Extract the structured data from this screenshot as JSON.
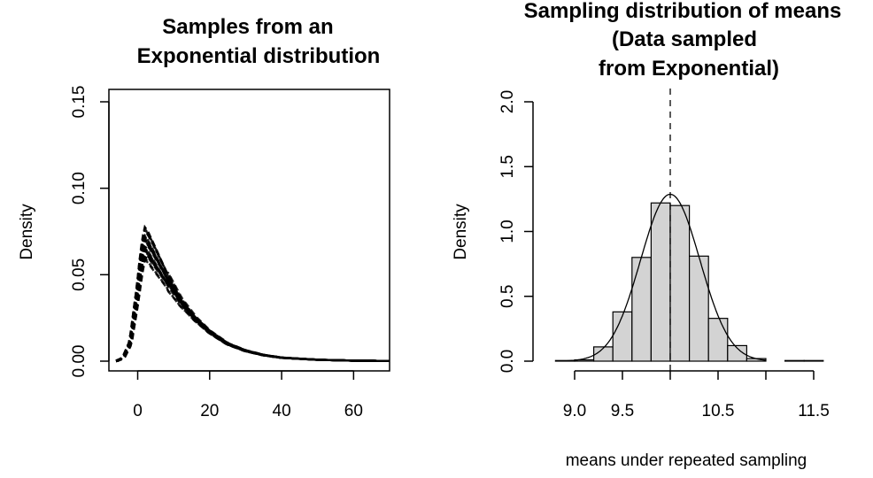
{
  "chart_data": [
    {
      "type": "line",
      "title": [
        "Samples from an",
        "Exponential distribution"
      ],
      "xlabel": "",
      "ylabel": "Density",
      "xlim": [
        -8,
        70
      ],
      "ylim": [
        0,
        0.15
      ],
      "xticks": [
        "0",
        "20",
        "40",
        "60"
      ],
      "yticks": [
        "0.00",
        "0.05",
        "0.10",
        "0.15"
      ],
      "grid": false,
      "note_series": "many overlaid dashed kernel density curves of exponential samples (mean ~10)",
      "series": [
        {
          "peak": 0.08,
          "x": [
            -6,
            -4,
            -2,
            0,
            1,
            2,
            3,
            5,
            8,
            12,
            16,
            20,
            25,
            30,
            35,
            40,
            50,
            60,
            70
          ],
          "y": [
            0.0,
            0.002,
            0.012,
            0.045,
            0.065,
            0.078,
            0.075,
            0.066,
            0.052,
            0.036,
            0.025,
            0.017,
            0.01,
            0.006,
            0.0035,
            0.002,
            0.0008,
            0.0003,
            0.0001
          ]
        },
        {
          "peak": 0.072
        },
        {
          "peak": 0.066
        },
        {
          "peak": 0.062
        }
      ]
    },
    {
      "type": "bar",
      "title": [
        "Sampling distribution of means",
        "(Data sampled",
        "from Exponential)"
      ],
      "xlabel": "means under repeated sampling",
      "ylabel": "Density",
      "xlim": [
        8.8,
        11.6
      ],
      "ylim": [
        0,
        2.0
      ],
      "xticks": [
        "9.0",
        "9.5",
        "10.5",
        "11.5"
      ],
      "yticks": [
        "0.0",
        "0.5",
        "1.0",
        "1.5",
        "2.0"
      ],
      "grid": false,
      "bin_edges": [
        8.8,
        9.0,
        9.2,
        9.4,
        9.6,
        9.8,
        10.0,
        10.2,
        10.4,
        10.6,
        10.8,
        11.0,
        11.2,
        11.4,
        11.6
      ],
      "values": [
        0.005,
        0.01,
        0.11,
        0.38,
        0.8,
        1.22,
        1.2,
        0.81,
        0.33,
        0.12,
        0.02,
        0.0,
        0.005,
        0.005
      ],
      "density_curve": {
        "mean": 10.0,
        "sd": 0.31
      },
      "reference_line": {
        "x": 10.0,
        "style": "dashed"
      }
    }
  ]
}
